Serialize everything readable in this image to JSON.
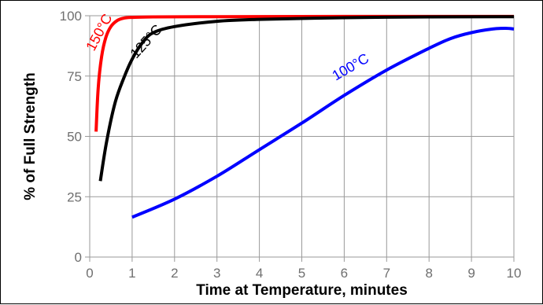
{
  "chart_data": {
    "type": "line",
    "title": "",
    "xlabel": "Time at Temperature, minutes",
    "ylabel": "% of Full Strength",
    "xlim": [
      0,
      10
    ],
    "ylim": [
      0,
      100
    ],
    "x_ticks": [
      "0",
      "1",
      "2",
      "3",
      "4",
      "5",
      "6",
      "7",
      "8",
      "9",
      "10"
    ],
    "y_ticks": [
      "0",
      "25",
      "50",
      "75",
      "100"
    ],
    "grid": true,
    "legend": "none",
    "series": [
      {
        "name": "150°C",
        "color": "#ff0000",
        "x": [
          0.15,
          0.2,
          0.28,
          0.38,
          0.5,
          0.65,
          0.8,
          1.0,
          1.5,
          3,
          6,
          10
        ],
        "y": [
          52,
          70,
          83,
          91,
          95.5,
          98,
          99,
          99.3,
          99.5,
          99.6,
          99.7,
          99.7
        ]
      },
      {
        "name": "125°C",
        "color": "#000000",
        "x": [
          0.25,
          0.4,
          0.6,
          0.8,
          1.0,
          1.25,
          1.5,
          2.0,
          3.0,
          4.0,
          6.0,
          8.0,
          10.0
        ],
        "y": [
          31.5,
          48,
          64,
          74,
          82,
          89,
          93,
          95.5,
          97.7,
          98.5,
          99.2,
          99.5,
          99.6
        ]
      },
      {
        "name": "100°C",
        "color": "#0000ff",
        "x": [
          1.0,
          2.0,
          3.0,
          4.0,
          5.0,
          6.0,
          7.0,
          8.0,
          8.5,
          9.0,
          9.5,
          9.8,
          10.0
        ],
        "y": [
          16.5,
          24,
          33.5,
          44.5,
          55.5,
          67,
          77.5,
          86.5,
          90.5,
          93,
          94.5,
          94.8,
          94.5
        ]
      }
    ]
  }
}
